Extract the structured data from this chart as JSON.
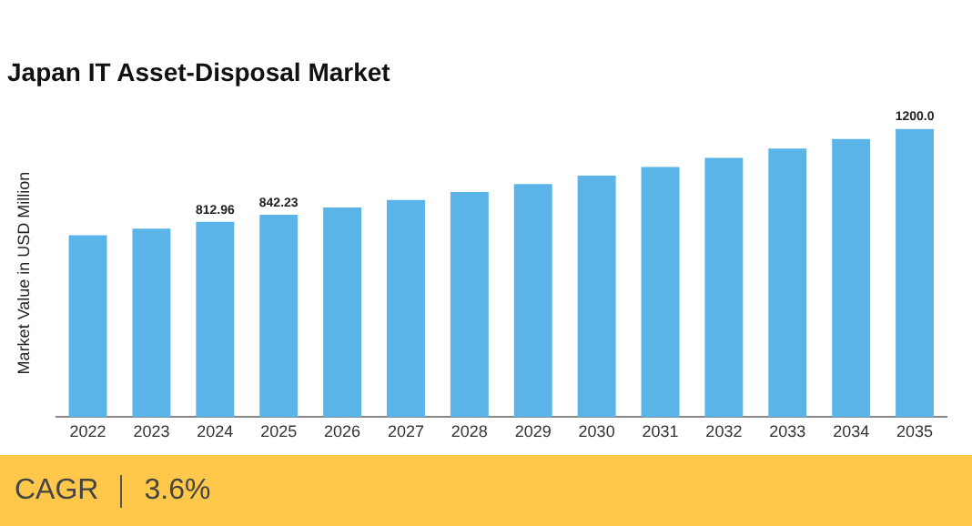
{
  "chart_data": {
    "type": "bar",
    "title": "Japan IT Asset-Disposal Market",
    "ylabel": "Market Value in USD Million",
    "categories": [
      "2022",
      "2023",
      "2024",
      "2025",
      "2026",
      "2027",
      "2028",
      "2029",
      "2030",
      "2031",
      "2032",
      "2033",
      "2034",
      "2035"
    ],
    "values": [
      757,
      785,
      812.96,
      842.23,
      873,
      904,
      937,
      970,
      1005,
      1041,
      1079,
      1118,
      1158,
      1200.0
    ],
    "value_labels": [
      null,
      null,
      "812.96",
      "842.23",
      null,
      null,
      null,
      null,
      null,
      null,
      null,
      null,
      null,
      "1200.0"
    ],
    "color": "#5ab4e8",
    "grid": false,
    "tick_labels": "x",
    "annotations": [
      "CAGR",
      "3.6%"
    ]
  }
}
